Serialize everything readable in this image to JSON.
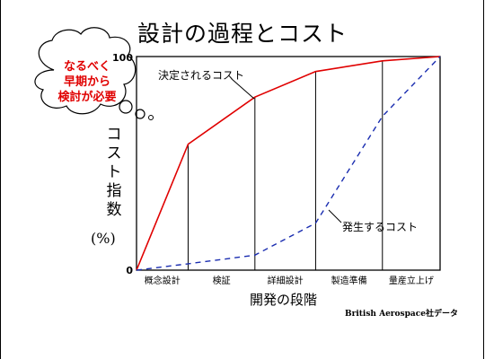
{
  "title": "設計の過程とコスト",
  "bubble": {
    "lines": [
      "なるべく",
      "早期から",
      "検討が必要"
    ],
    "color": "#e00000"
  },
  "y_label_chars": [
    "コ",
    "ス",
    "ト",
    "指",
    "数"
  ],
  "y_unit": "(%)",
  "x_label": "開発の段階",
  "source": "British Aerospace社データ",
  "chart_data": {
    "type": "line",
    "title": "設計の過程とコスト",
    "xlabel": "開発の段階",
    "ylabel": "コスト指数",
    "ylim": [
      0,
      100
    ],
    "y_ticks": [
      "0",
      "100"
    ],
    "x_ticks": [
      "概念設計",
      "検証",
      "詳細設計",
      "製造準備",
      "量産立上げ"
    ],
    "stage_dividers": [
      0.17,
      0.39,
      0.59,
      0.81
    ],
    "series": [
      {
        "name": "決定されるコスト",
        "color": "#e00000",
        "style": "solid",
        "points": [
          [
            0,
            0
          ],
          [
            0.17,
            59
          ],
          [
            0.39,
            81
          ],
          [
            0.59,
            93
          ],
          [
            0.81,
            98
          ],
          [
            1,
            100
          ]
        ]
      },
      {
        "name": "発生するコスト",
        "color": "#1a2db0",
        "style": "dashed",
        "points": [
          [
            0,
            0
          ],
          [
            0.17,
            3
          ],
          [
            0.39,
            7
          ],
          [
            0.59,
            22
          ],
          [
            0.81,
            72
          ],
          [
            1,
            100
          ]
        ]
      }
    ]
  }
}
